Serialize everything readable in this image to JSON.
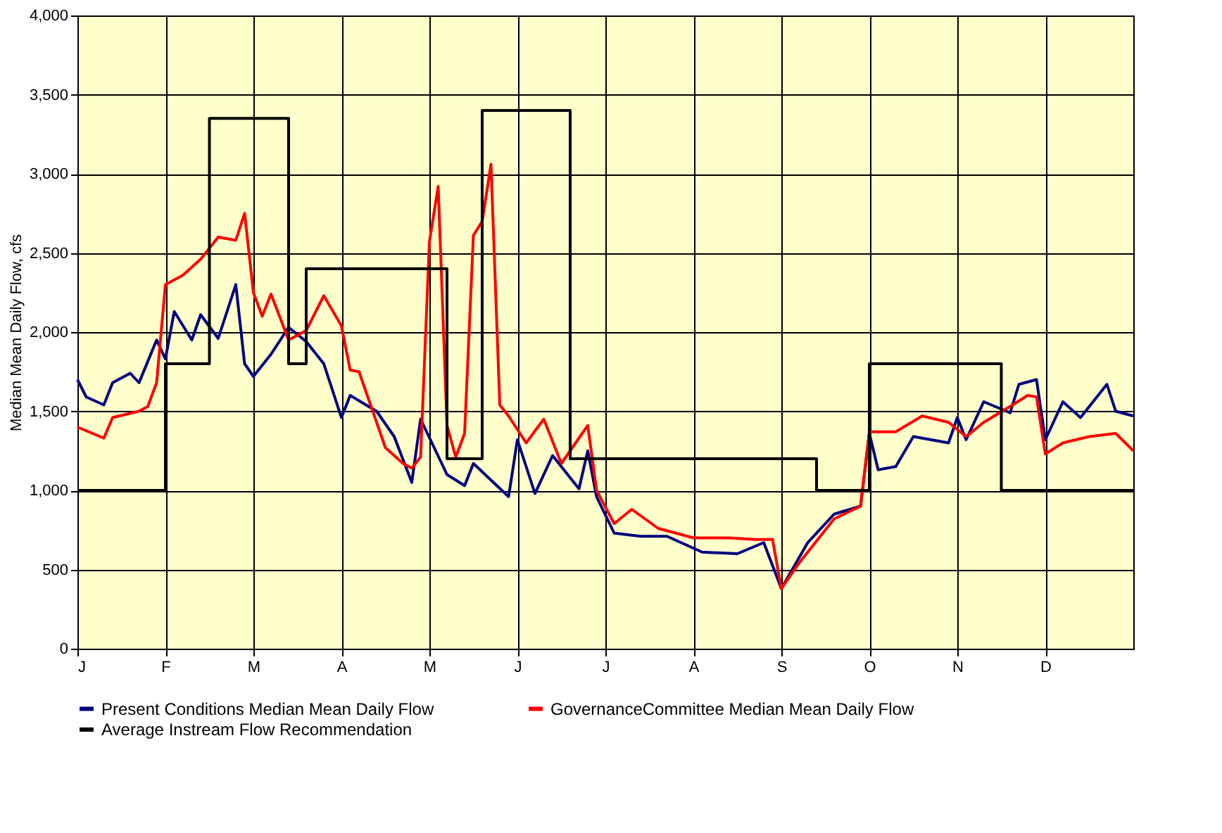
{
  "chart_data": {
    "type": "line",
    "ylabel": "Median Mean Daily Flow, cfs",
    "ylim": [
      0,
      4000
    ],
    "categories": [
      "J",
      null,
      null,
      null,
      null,
      null,
      null,
      null,
      null,
      null,
      "F",
      null,
      null,
      null,
      null,
      null,
      null,
      null,
      null,
      null,
      "M",
      null,
      null,
      null,
      null,
      null,
      null,
      null,
      null,
      null,
      "A",
      null,
      null,
      null,
      null,
      null,
      null,
      null,
      null,
      null,
      "M",
      null,
      null,
      null,
      null,
      null,
      null,
      null,
      null,
      null,
      "J",
      null,
      null,
      null,
      null,
      null,
      null,
      null,
      null,
      null,
      "J",
      null,
      null,
      null,
      null,
      null,
      null,
      null,
      null,
      null,
      "A",
      null,
      null,
      null,
      null,
      null,
      null,
      null,
      null,
      null,
      "S",
      null,
      null,
      null,
      null,
      null,
      null,
      null,
      null,
      null,
      "O",
      null,
      null,
      null,
      null,
      null,
      null,
      null,
      null,
      null,
      "N",
      null,
      null,
      null,
      null,
      null,
      null,
      null,
      null,
      null,
      "D",
      null,
      null,
      null,
      null,
      null,
      null,
      null,
      null,
      null,
      null
    ],
    "yticks": [
      0,
      {
        "value": 500,
        "label": "500"
      },
      {
        "value": 1000,
        "label": "1,000"
      },
      {
        "value": 1500,
        "label": "1,500"
      },
      {
        "value": 2000,
        "label": "2,000"
      },
      {
        "value": 2500,
        "label": "2,500"
      },
      {
        "value": 3000,
        "label": "3,000"
      },
      {
        "value": 3500,
        "label": "3,500"
      },
      {
        "value": 4000,
        "label": "4,000"
      }
    ],
    "grid": true,
    "legend": "bottom",
    "marker": "none",
    "line_style": "solid",
    "series": [
      {
        "name": "Present Conditions Median Mean Daily Flow",
        "color": "#000080",
        "values": [
          1700,
          1590,
          null,
          1540,
          1680,
          null,
          1740,
          1680,
          null,
          1950,
          1830,
          2130,
          null,
          1950,
          2110,
          null,
          1960,
          null,
          2300,
          1800,
          1720,
          null,
          1860,
          null,
          2030,
          null,
          1940,
          null,
          1800,
          null,
          1460,
          1600,
          null,
          null,
          1500,
          null,
          1340,
          null,
          1050,
          1450,
          null,
          null,
          1100,
          null,
          1030,
          1170,
          null,
          null,
          null,
          960,
          1320,
          null,
          980,
          null,
          1220,
          null,
          null,
          1010,
          1250,
          960,
          null,
          730,
          null,
          null,
          710,
          null,
          null,
          710,
          null,
          null,
          null,
          610,
          null,
          null,
          null,
          600,
          null,
          null,
          670,
          null,
          380,
          null,
          null,
          670,
          null,
          null,
          850,
          null,
          null,
          900,
          1360,
          1130,
          null,
          1150,
          null,
          1340,
          null,
          null,
          null,
          1300,
          1460,
          1320,
          null,
          1560,
          null,
          null,
          1490,
          1670,
          null,
          1700,
          1320,
          null,
          1560,
          null,
          1460,
          null,
          null,
          1670,
          1500,
          null,
          1470
        ]
      },
      {
        "name": "GovernanceCommittee Median Mean Daily Flow",
        "color": "#ff0000",
        "values": [
          1400,
          null,
          null,
          1330,
          1460,
          null,
          null,
          1500,
          1530,
          1680,
          2300,
          null,
          2360,
          null,
          2460,
          null,
          2600,
          null,
          2580,
          2750,
          2250,
          2100,
          2240,
          null,
          1950,
          null,
          2010,
          null,
          2230,
          null,
          2040,
          1760,
          1750,
          null,
          null,
          1270,
          null,
          1170,
          1140,
          1210,
          2570,
          2920,
          1410,
          1210,
          1360,
          2610,
          2700,
          3060,
          1540,
          1470,
          null,
          1300,
          null,
          1450,
          null,
          1170,
          null,
          null,
          1410,
          1000,
          null,
          790,
          null,
          880,
          null,
          null,
          760,
          null,
          null,
          null,
          700,
          null,
          null,
          null,
          700,
          null,
          null,
          690,
          null,
          690,
          380,
          null,
          540,
          null,
          null,
          null,
          820,
          null,
          null,
          900,
          1370,
          null,
          null,
          1370,
          null,
          null,
          1470,
          null,
          null,
          1430,
          null,
          1340,
          null,
          1430,
          null,
          null,
          1530,
          null,
          1600,
          1590,
          1230,
          null,
          1300,
          null,
          null,
          1340,
          null,
          null,
          1360,
          null,
          1250
        ]
      },
      {
        "name": "Average Instream Flow Recommendation",
        "color": "#000000",
        "type": "step",
        "values": [
          1000,
          1000,
          1000,
          1000,
          1000,
          1000,
          1000,
          1000,
          1000,
          1000,
          1800,
          1800,
          1800,
          1800,
          1800,
          3350,
          3350,
          3350,
          3350,
          3350,
          3350,
          3350,
          3350,
          3350,
          1800,
          1800,
          2400,
          2400,
          2400,
          2400,
          2400,
          2400,
          2400,
          2400,
          2400,
          2400,
          2400,
          2400,
          2400,
          2400,
          2400,
          2400,
          1200,
          1200,
          1200,
          1200,
          3400,
          3400,
          3400,
          3400,
          3400,
          3400,
          3400,
          3400,
          3400,
          3400,
          1200,
          1200,
          1200,
          1200,
          1200,
          1200,
          1200,
          1200,
          1200,
          1200,
          1200,
          1200,
          1200,
          1200,
          1200,
          1200,
          1200,
          1200,
          1200,
          1200,
          1200,
          1200,
          1200,
          1200,
          1200,
          1200,
          1200,
          1200,
          1000,
          1000,
          1000,
          1000,
          1000,
          1000,
          1800,
          1800,
          1800,
          1800,
          1800,
          1800,
          1800,
          1800,
          1800,
          1800,
          1800,
          1800,
          1800,
          1800,
          1800,
          1000,
          1000,
          1000,
          1000,
          1000,
          1000,
          1000,
          1000,
          1000,
          1000,
          1000,
          1000,
          1000,
          1000,
          1000,
          1000
        ]
      }
    ]
  }
}
